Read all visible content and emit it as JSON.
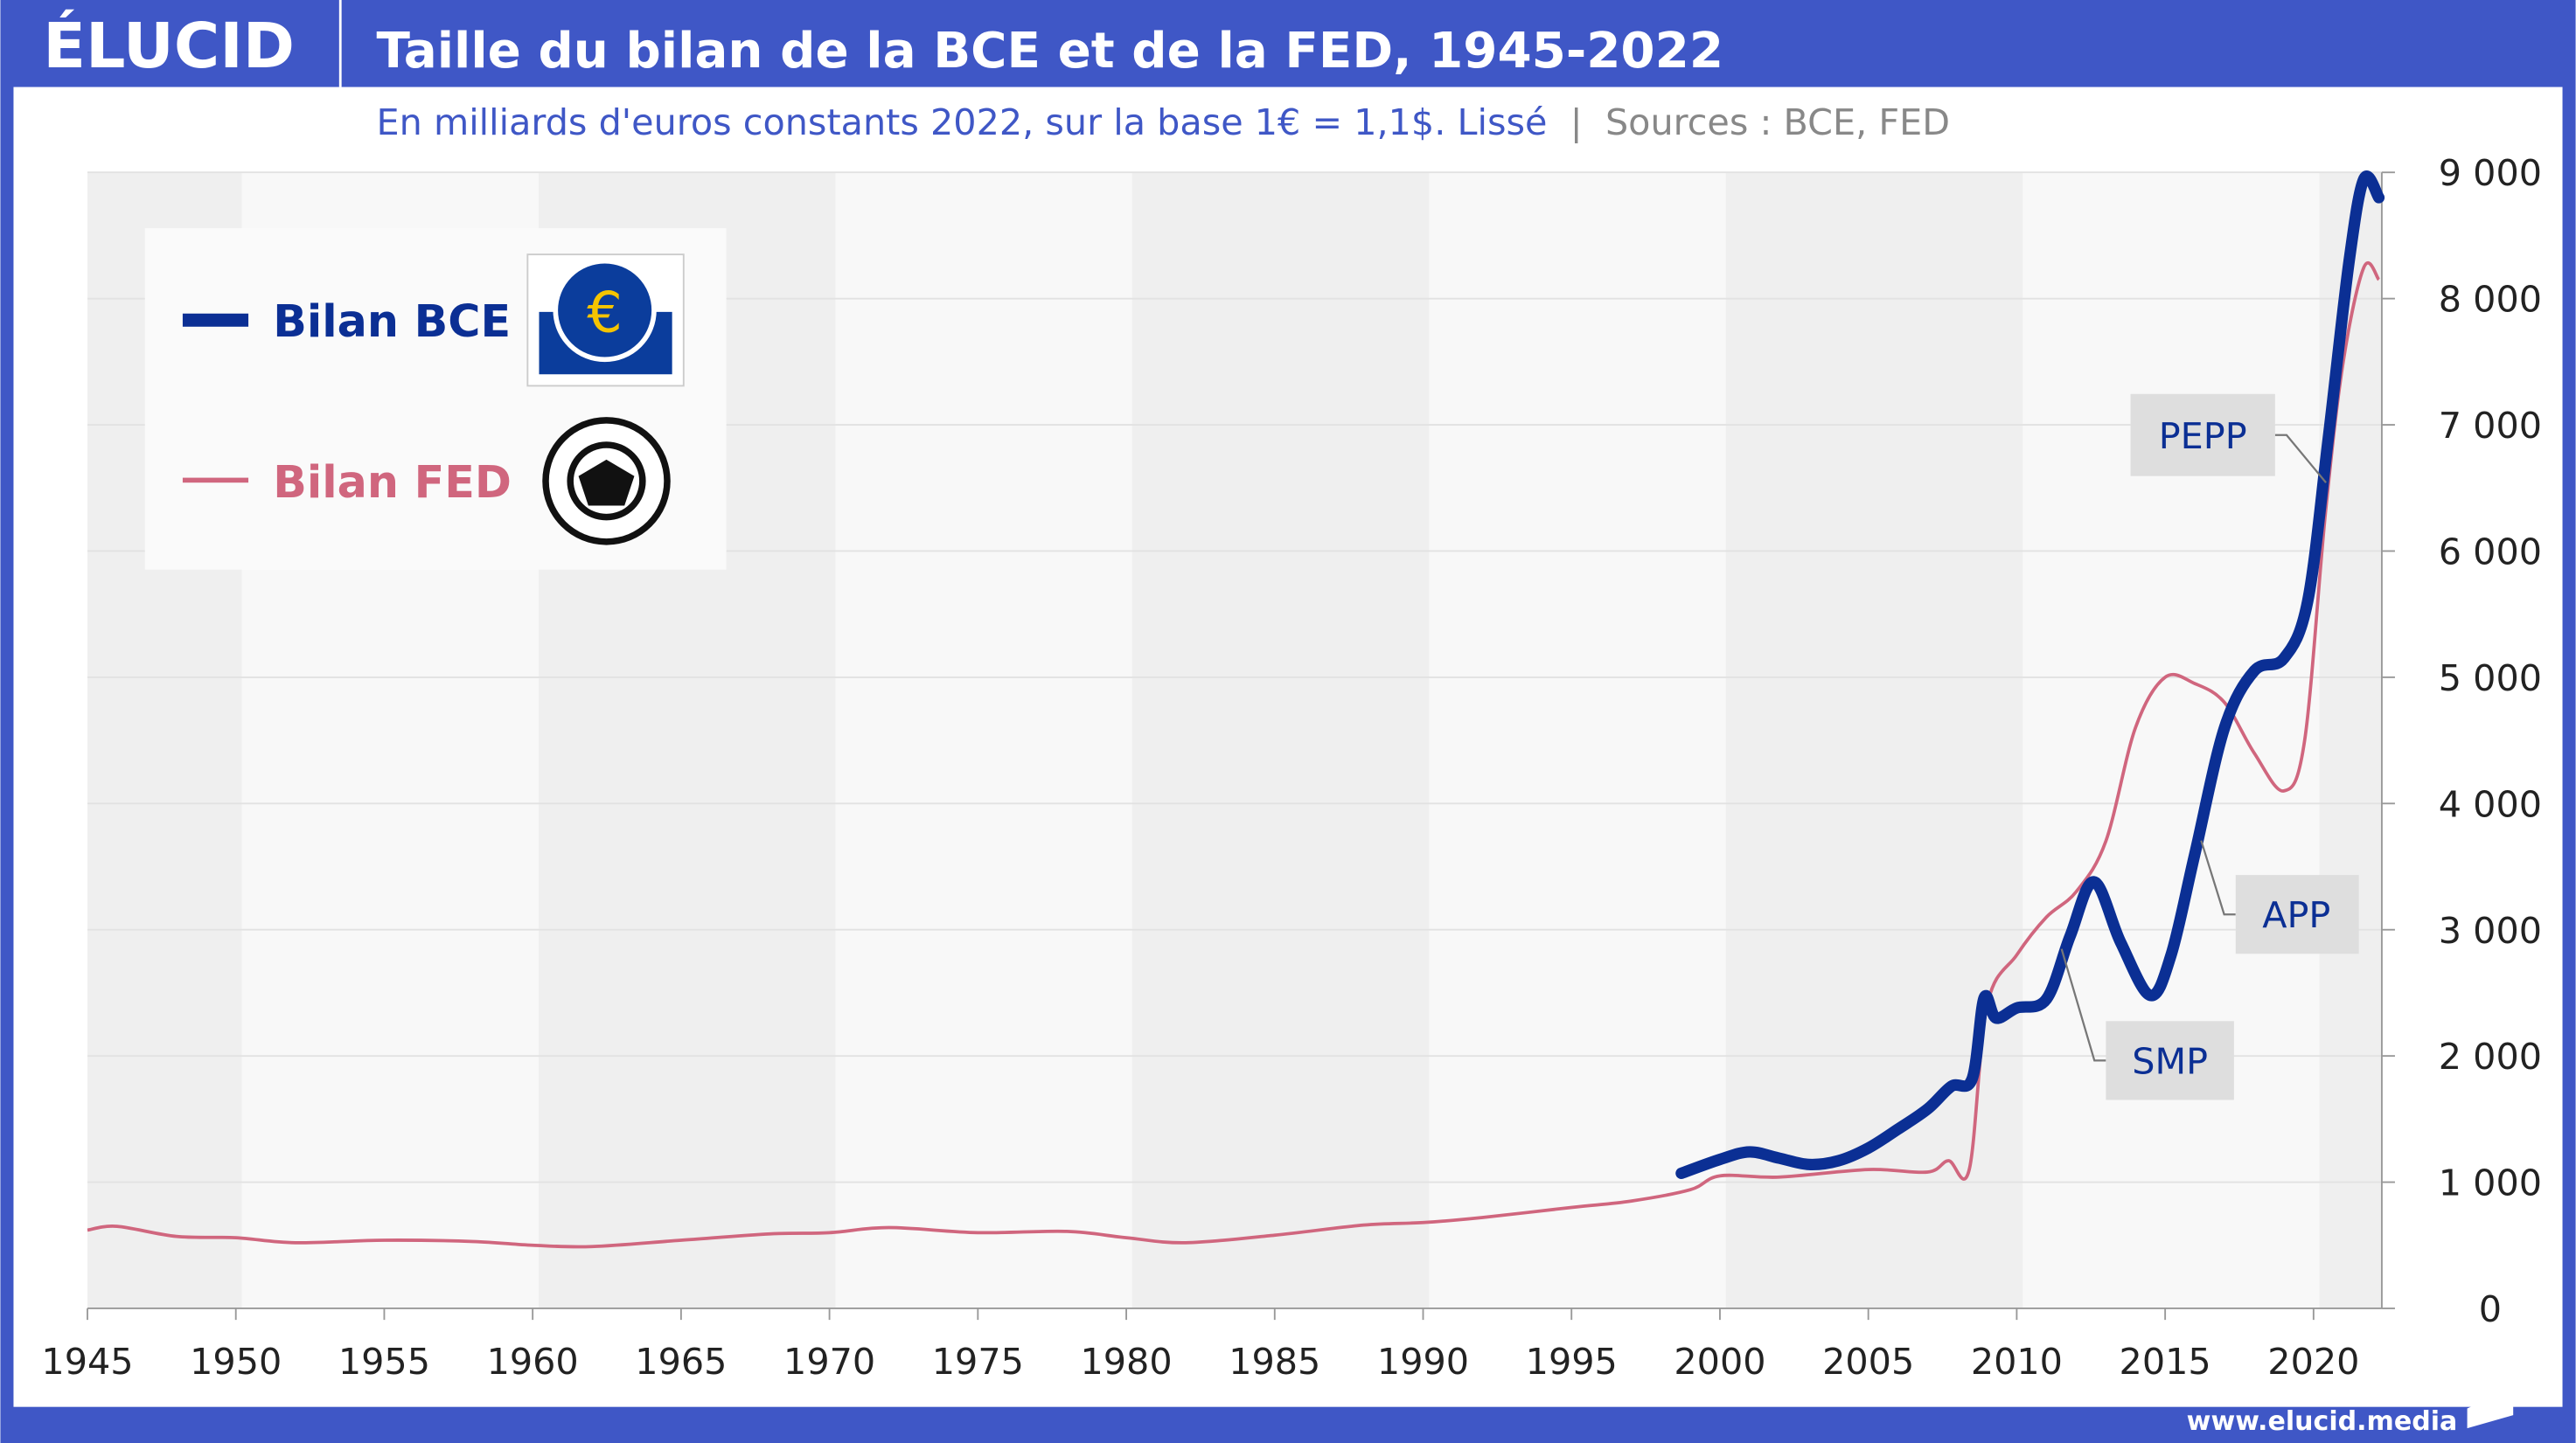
{
  "header": {
    "logo": "ÉLUCID",
    "title": "Taille du bilan de la BCE et de la FED, 1945-2022",
    "subtitle": "En milliards d'euros constants 2022, sur la base 1€ = 1,1$. Lissé",
    "separator": "|",
    "sources": "Sources : BCE, FED"
  },
  "footer": {
    "url": "www.elucid.media"
  },
  "colors": {
    "brand": "#3f57c6",
    "bce": "#0b2f94",
    "fed": "#d0667e"
  },
  "chart_data": {
    "type": "line",
    "title": "Taille du bilan de la BCE et de la FED, 1945-2022",
    "xlabel": "",
    "ylabel": "",
    "xlim": [
      1945,
      2022.3
    ],
    "ylim": [
      0,
      9000
    ],
    "x_ticks": [
      1945,
      1950,
      1955,
      1960,
      1965,
      1970,
      1975,
      1980,
      1985,
      1990,
      1995,
      2000,
      2005,
      2010,
      2015,
      2020
    ],
    "y_ticks": [
      0,
      1000,
      2000,
      3000,
      4000,
      5000,
      6000,
      7000,
      8000,
      9000
    ],
    "y_tick_labels": [
      "0",
      "1 000",
      "2 000",
      "3 000",
      "4 000",
      "5 000",
      "6 000",
      "7 000",
      "8 000",
      "9 000"
    ],
    "legend": {
      "placement": "top-left",
      "entries": [
        "Bilan BCE",
        "Bilan FED"
      ]
    },
    "series": [
      {
        "name": "Bilan BCE",
        "color": "#0b2f94",
        "x": [
          1998.7,
          2000,
          2001,
          2002,
          2003,
          2004,
          2005,
          2006,
          2007,
          2007.8,
          2008.5,
          2008.9,
          2009.3,
          2010,
          2011,
          2011.8,
          2012.6,
          2013.5,
          2014.5,
          2015.2,
          2016,
          2017,
          2018,
          2019,
          2019.8,
          2020.5,
          2021.2,
          2021.7,
          2022.2
        ],
        "values": [
          1070,
          1180,
          1240,
          1190,
          1140,
          1170,
          1270,
          1420,
          1580,
          1760,
          1820,
          2460,
          2300,
          2380,
          2450,
          2950,
          3380,
          2900,
          2480,
          2800,
          3600,
          4600,
          5050,
          5150,
          5600,
          6900,
          8300,
          8950,
          8800
        ]
      },
      {
        "name": "Bilan FED",
        "color": "#d0667e",
        "x": [
          1945,
          1946,
          1948,
          1950,
          1952,
          1955,
          1958,
          1960,
          1962,
          1965,
          1968,
          1970,
          1972,
          1975,
          1978,
          1980,
          1982,
          1985,
          1988,
          1990,
          1992,
          1995,
          1997,
          1999,
          2000,
          2002,
          2005,
          2007,
          2007.7,
          2008.4,
          2009,
          2010,
          2011,
          2012,
          2013,
          2014,
          2015,
          2016,
          2017,
          2018,
          2019,
          2019.7,
          2020.4,
          2021,
          2021.7,
          2022.2
        ],
        "values": [
          620,
          650,
          570,
          560,
          520,
          540,
          530,
          500,
          490,
          540,
          590,
          600,
          640,
          600,
          610,
          560,
          520,
          580,
          660,
          680,
          720,
          800,
          850,
          940,
          1050,
          1040,
          1100,
          1080,
          1170,
          1100,
          2400,
          2800,
          3100,
          3300,
          3700,
          4600,
          5000,
          4950,
          4800,
          4400,
          4100,
          4500,
          6300,
          7500,
          8250,
          8150
        ]
      }
    ],
    "annotations": [
      "PEPP",
      "APP",
      "SMP"
    ]
  }
}
